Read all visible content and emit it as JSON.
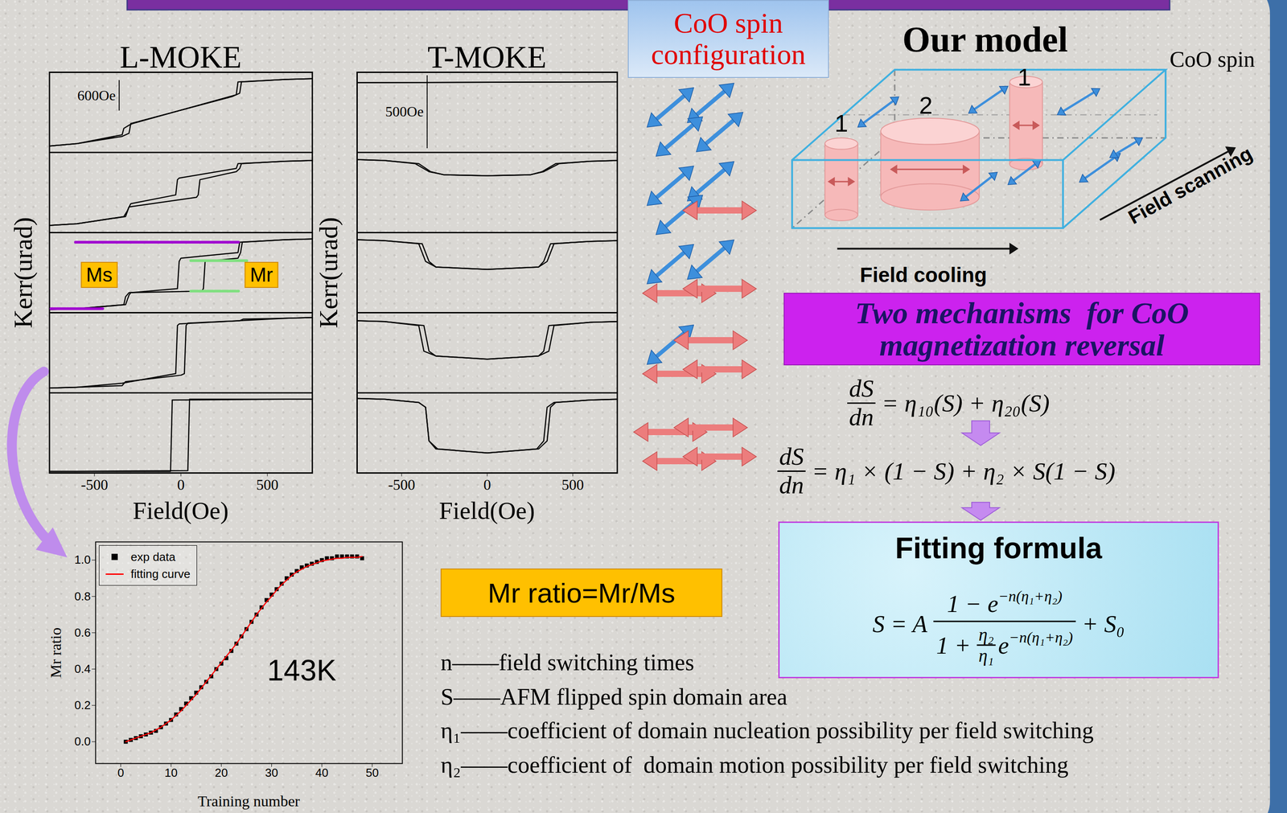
{
  "chart_data": [
    {
      "type": "line",
      "title": "L-MOKE",
      "xlim": [
        -760,
        760
      ],
      "ylim": [
        0,
        100
      ],
      "tick_labels": false,
      "color": "#000000",
      "scale_bar": {
        "text": "600Oe",
        "x": -357,
        "y": [
          52,
          90
        ]
      },
      "series": [
        {
          "x": [
            -760,
            -600,
            -340,
            -300,
            -290,
            300,
            340,
            350,
            600,
            760
          ],
          "values": [
            8,
            11,
            20,
            24,
            36,
            70,
            74,
            88,
            91,
            92
          ]
        },
        {
          "x": [
            760,
            600,
            330,
            320,
            -280,
            -300,
            -330,
            -340,
            -600,
            -760
          ],
          "values": [
            92,
            91,
            88,
            72,
            36,
            34,
            30,
            22,
            11,
            8
          ]
        }
      ]
    },
    {
      "type": "line",
      "xlim": [
        -760,
        760
      ],
      "ylim": [
        0,
        100
      ],
      "tick_labels": false,
      "color": "#000000",
      "series": [
        {
          "x": [
            -760,
            -600,
            -330,
            -310,
            -300,
            90,
            100,
            110,
            320,
            340,
            350,
            600,
            760
          ],
          "values": [
            9,
            11,
            20,
            27,
            32,
            44,
            47,
            66,
            76,
            80,
            86,
            89,
            90
          ]
        },
        {
          "x": [
            760,
            600,
            330,
            320,
            -10,
            -20,
            -30,
            -290,
            -300,
            -320,
            -600,
            -760
          ],
          "values": [
            90,
            89,
            86,
            80,
            68,
            66,
            47,
            36,
            32,
            20,
            11,
            9
          ]
        }
      ]
    },
    {
      "type": "line",
      "y_label": "Kerr(urad)",
      "xlim": [
        -760,
        760
      ],
      "ylim": [
        0,
        100
      ],
      "tick_labels": false,
      "color": "#000000",
      "annotations": [
        {
          "text": "Ms",
          "color": "#ffc000",
          "line_color": "#a000d0",
          "x": -471,
          "y": 47,
          "segments": [
            {
              "x": [
                -610,
                333
              ],
              "y": [
                88,
                88
              ]
            },
            {
              "x": [
                -752,
                -452
              ],
              "y": [
                5,
                5
              ]
            }
          ]
        },
        {
          "text": "Mr",
          "color": "#ffc000",
          "line_color": "#80e080",
          "x": 467,
          "y": 47,
          "segments": [
            {
              "x": [
                57,
                381
              ],
              "y": [
                65,
                65
              ]
            },
            {
              "x": [
                57,
                333
              ],
              "y": [
                27,
                27
              ]
            }
          ]
        }
      ],
      "series": [
        {
          "x": [
            -760,
            -600,
            -330,
            -320,
            -300,
            120,
            130,
            140,
            330,
            345,
            355,
            600,
            760
          ],
          "values": [
            4,
            5,
            10,
            20,
            25,
            27,
            30,
            64,
            68,
            75,
            88,
            91,
            92
          ]
        },
        {
          "x": [
            760,
            600,
            340,
            330,
            0,
            -10,
            -20,
            -290,
            -300,
            -320,
            -600,
            -760
          ],
          "values": [
            92,
            91,
            88,
            75,
            68,
            64,
            30,
            25,
            22,
            10,
            5,
            4
          ]
        }
      ]
    },
    {
      "type": "line",
      "xlim": [
        -760,
        760
      ],
      "ylim": [
        0,
        100
      ],
      "tick_labels": false,
      "color": "#000000",
      "series": [
        {
          "x": [
            -760,
            -600,
            -340,
            -320,
            0,
            20,
            30,
            40,
            340,
            360,
            600,
            760
          ],
          "values": [
            6,
            7,
            9,
            14,
            22,
            24,
            84,
            87,
            90,
            92,
            93,
            94
          ]
        },
        {
          "x": [
            760,
            600,
            -10,
            -20,
            -30,
            -340,
            -600,
            -760
          ],
          "values": [
            94,
            93,
            86,
            84,
            24,
            12,
            7,
            6
          ]
        }
      ]
    },
    {
      "type": "line",
      "x_label": "Field(Oe)",
      "xlim": [
        -760,
        760
      ],
      "ylim": [
        0,
        100
      ],
      "xticks": [
        -500,
        0,
        500
      ],
      "color": "#000000",
      "series": [
        {
          "x": [
            -760,
            -600,
            40,
            50,
            600,
            760
          ],
          "values": [
            2,
            2,
            3,
            92,
            92,
            92
          ]
        },
        {
          "x": [
            760,
            600,
            -50,
            -60,
            -600,
            -760
          ],
          "values": [
            92,
            92,
            91,
            2,
            2,
            2
          ]
        }
      ]
    },
    {
      "type": "line",
      "title": "T-MOKE",
      "xlim": [
        -760,
        760
      ],
      "ylim": [
        0,
        100
      ],
      "tick_labels": false,
      "color": "#000000",
      "scale_bar": {
        "text": "500Oe",
        "x": -351,
        "y": [
          5,
          96
        ]
      },
      "series": [
        {
          "x": [
            -760,
            760
          ],
          "values": [
            87,
            88
          ]
        },
        {
          "x": [
            760,
            -760
          ],
          "values": [
            88,
            87
          ]
        }
      ]
    },
    {
      "type": "line",
      "xlim": [
        -760,
        760
      ],
      "ylim": [
        0,
        100
      ],
      "tick_labels": false,
      "color": "#000000",
      "series": [
        {
          "x": [
            -760,
            -600,
            -400,
            -330,
            -250,
            0,
            250,
            330,
            420,
            600,
            760
          ],
          "values": [
            91,
            90,
            86,
            76,
            72,
            71,
            72,
            76,
            86,
            89,
            90
          ]
        },
        {
          "x": [
            760,
            600,
            400,
            320,
            250,
            0,
            -250,
            -340,
            -420,
            -600,
            -760
          ],
          "values": [
            90,
            89,
            86,
            76,
            72,
            71,
            72,
            76,
            86,
            90,
            91
          ]
        }
      ]
    },
    {
      "type": "line",
      "y_label": "Kerr(urad)",
      "xlim": [
        -760,
        760
      ],
      "ylim": [
        0,
        100
      ],
      "tick_labels": false,
      "color": "#000000",
      "series": [
        {
          "x": [
            -760,
            -600,
            -380,
            -340,
            -300,
            0,
            300,
            350,
            390,
            600,
            760
          ],
          "values": [
            91,
            90,
            86,
            64,
            57,
            54,
            57,
            64,
            86,
            89,
            90
          ]
        },
        {
          "x": [
            760,
            600,
            370,
            330,
            300,
            0,
            -300,
            -360,
            -400,
            -600,
            -760
          ],
          "values": [
            90,
            89,
            86,
            64,
            57,
            54,
            57,
            64,
            86,
            90,
            91
          ]
        }
      ]
    },
    {
      "type": "line",
      "xlim": [
        -760,
        760
      ],
      "ylim": [
        0,
        100
      ],
      "tick_labels": false,
      "color": "#000000",
      "series": [
        {
          "x": [
            -760,
            -600,
            -370,
            -340,
            -300,
            0,
            300,
            360,
            390,
            600,
            760
          ],
          "values": [
            90,
            89,
            84,
            52,
            46,
            42,
            46,
            52,
            84,
            88,
            89
          ]
        },
        {
          "x": [
            760,
            600,
            360,
            330,
            300,
            0,
            -300,
            -370,
            -400,
            -600,
            -760
          ],
          "values": [
            89,
            88,
            84,
            52,
            46,
            42,
            46,
            52,
            84,
            89,
            90
          ]
        }
      ]
    },
    {
      "type": "line",
      "x_label": "Field(Oe)",
      "xlim": [
        -760,
        760
      ],
      "ylim": [
        0,
        100
      ],
      "xticks": [
        -500,
        0,
        500
      ],
      "color": "#000000",
      "series": [
        {
          "x": [
            -760,
            -600,
            -400,
            -360,
            -340,
            -300,
            0,
            300,
            350,
            370,
            400,
            600,
            760
          ],
          "values": [
            93,
            92,
            88,
            82,
            40,
            30,
            25,
            30,
            40,
            82,
            88,
            91,
            92
          ]
        },
        {
          "x": [
            760,
            600,
            390,
            350,
            330,
            290,
            0,
            -290,
            -340,
            -360,
            -400,
            -600,
            -760
          ],
          "values": [
            92,
            91,
            88,
            82,
            40,
            30,
            25,
            30,
            40,
            82,
            88,
            92,
            93
          ]
        }
      ]
    },
    {
      "type": "line",
      "x_label": "Training number",
      "y_label": "Mr ratio",
      "xlim": [
        -5,
        56
      ],
      "ylim": [
        -0.12,
        1.1
      ],
      "xticks": [
        0,
        10,
        20,
        30,
        40,
        50
      ],
      "yticks": [
        {
          "value": 0,
          "label": "0.0"
        },
        {
          "value": 0.2,
          "label": "0.2"
        },
        {
          "value": 0.4,
          "label": "0.4"
        },
        {
          "value": 0.6,
          "label": "0.6"
        },
        {
          "value": 0.8,
          "label": "0.8"
        },
        {
          "value": 1,
          "label": "1.0"
        }
      ],
      "legend": "top-left",
      "annotations": [
        {
          "text": "143K",
          "x": 36,
          "y": 0.39
        }
      ],
      "series": [
        {
          "name": "exp data",
          "type": "scatter",
          "marker": "square",
          "color": "#000000",
          "x": [
            1,
            2,
            3,
            4,
            5,
            6,
            7,
            8,
            9,
            10,
            11,
            12,
            13,
            14,
            15,
            16,
            17,
            18,
            19,
            20,
            21,
            22,
            23,
            24,
            25,
            26,
            27,
            28,
            29,
            30,
            31,
            32,
            33,
            34,
            35,
            36,
            37,
            38,
            39,
            40,
            41,
            42,
            43,
            44,
            45,
            46,
            47,
            48
          ],
          "values": [
            0.0,
            0.01,
            0.02,
            0.03,
            0.04,
            0.05,
            0.06,
            0.08,
            0.1,
            0.12,
            0.15,
            0.18,
            0.21,
            0.24,
            0.27,
            0.3,
            0.33,
            0.36,
            0.4,
            0.43,
            0.46,
            0.5,
            0.54,
            0.58,
            0.62,
            0.66,
            0.7,
            0.74,
            0.78,
            0.81,
            0.84,
            0.87,
            0.9,
            0.92,
            0.94,
            0.96,
            0.97,
            0.98,
            0.99,
            1.0,
            1.01,
            1.01,
            1.02,
            1.02,
            1.02,
            1.02,
            1.02,
            1.01
          ]
        },
        {
          "name": "fitting curve",
          "type": "line",
          "color": "#ff0000",
          "x": [
            1,
            2,
            3,
            4,
            5,
            6,
            7,
            8,
            9,
            10,
            11,
            12,
            13,
            14,
            15,
            16,
            17,
            18,
            19,
            20,
            21,
            22,
            23,
            24,
            25,
            26,
            27,
            28,
            29,
            30,
            31,
            32,
            33,
            34,
            35,
            36,
            37,
            38,
            39,
            40,
            41,
            42,
            43,
            44,
            45,
            46,
            47,
            48
          ],
          "values": [
            0.0,
            0.01,
            0.02,
            0.03,
            0.04,
            0.05,
            0.065,
            0.08,
            0.1,
            0.12,
            0.145,
            0.17,
            0.2,
            0.23,
            0.26,
            0.295,
            0.33,
            0.365,
            0.4,
            0.435,
            0.47,
            0.505,
            0.54,
            0.58,
            0.62,
            0.66,
            0.7,
            0.735,
            0.77,
            0.8,
            0.835,
            0.865,
            0.89,
            0.915,
            0.935,
            0.95,
            0.965,
            0.975,
            0.985,
            0.995,
            1.0,
            1.005,
            1.01,
            1.01,
            1.015,
            1.015,
            1.015,
            1.02
          ]
        }
      ]
    }
  ],
  "spin_box": {
    "text": "CoO spin configuration"
  },
  "model": {
    "title": "Our model",
    "side_label": "CoO spin",
    "domain_labels": [
      "1",
      "2",
      "1"
    ],
    "field_cooling": "Field cooling",
    "field_scanning": "Field scanning"
  },
  "mechanisms": {
    "title": "Two mechanisms  for CoO magnetization reversal",
    "eq1": {
      "num": "dS",
      "den": "dn",
      "rhs": "= η₁₀(S) + η₂₀(S)"
    },
    "eq2": {
      "num": "dS",
      "den": "dn",
      "rhs": "= η₁ × (1 − S) + η₂ × S(1 − S)"
    }
  },
  "fitting": {
    "title": "Fitting formula",
    "lhs": "S = A",
    "num": "1 − e",
    "num_sup": "−n(η₁+η₂)",
    "den_lead": "1 + ",
    "den_frac": [
      "η₂",
      "η₁"
    ],
    "den_e": "e",
    "den_sup": "−n(η₁+η₂)",
    "tail": "+ S₀"
  },
  "mr_definition": "Mr ratio=Mr/Ms",
  "definitions": [
    "n——field switching times",
    "S——AFM flipped spin domain area",
    "η₁——coefficient of domain nucleation possibility per field switching",
    "η₂——coefficient of  domain motion possibility per field switching"
  ]
}
